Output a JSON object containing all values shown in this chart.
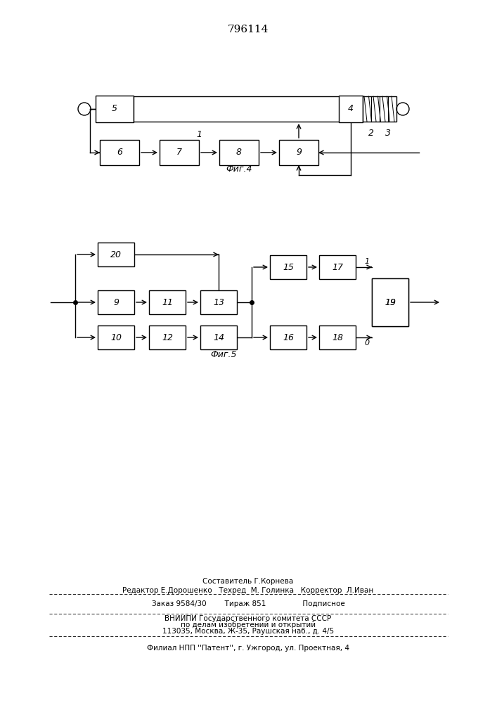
{
  "title": "796114",
  "fig4_caption": "Фиг.4",
  "fig5_caption": "Фиг.5",
  "footer": {
    "line1": "Составитель Г.Корнева",
    "line2": "Редактор Е.Дорошенко   Техред  М. Голинка   Корректор  Л.Иван",
    "line3": "Заказ 9584/30        Тираж 851                Подписное",
    "line4": "ВНИИПИ Государственного комитета СССР",
    "line5": "по делам изобретений и открытий",
    "line6": "113035, Москва, Ж-35, Раушская наб., д. 4/5",
    "line7": "Филиал НПП ''Патент'', г. Ужгород, ул. Проектная, 4"
  }
}
